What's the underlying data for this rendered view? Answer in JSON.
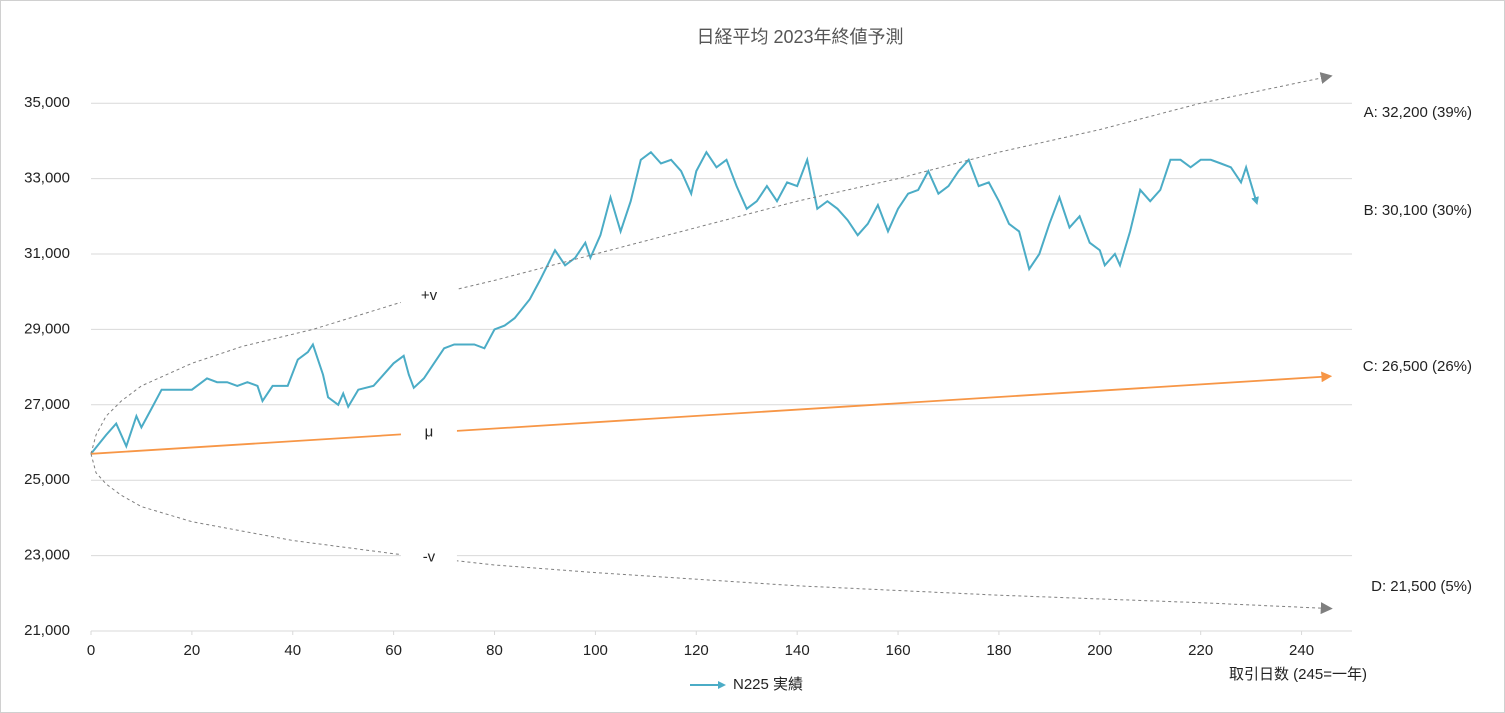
{
  "chart_data": {
    "type": "line",
    "title": "日経平均 2023年終値予測",
    "x_label": "取引日数 (245=一年)",
    "xlim": [
      0,
      250
    ],
    "ylim": [
      21000,
      36000
    ],
    "xticks": [
      0,
      20,
      40,
      60,
      80,
      100,
      120,
      140,
      160,
      180,
      200,
      220,
      240
    ],
    "yticks": [
      {
        "value": 21000,
        "label": "21,000"
      },
      {
        "value": 23000,
        "label": "23,000"
      },
      {
        "value": 25000,
        "label": "25,000"
      },
      {
        "value": 27000,
        "label": "27,000"
      },
      {
        "value": 29000,
        "label": "29,000"
      },
      {
        "value": 31000,
        "label": "31,000"
      },
      {
        "value": 33000,
        "label": "33,000"
      },
      {
        "value": 35000,
        "label": "35,000"
      }
    ],
    "grid": true,
    "legend": "bottom",
    "series": [
      {
        "name": "N225 実績",
        "color": "#4bacc6",
        "dashed": false,
        "legend": true,
        "x": [
          0,
          3,
          5,
          7,
          9,
          10,
          12,
          14,
          17,
          20,
          23,
          25,
          27,
          29,
          31,
          33,
          34,
          36,
          39,
          41,
          43,
          44,
          46,
          47,
          49,
          50,
          51,
          53,
          56,
          58,
          60,
          62,
          63,
          64,
          66,
          68,
          70,
          72,
          74,
          76,
          78,
          80,
          82,
          84,
          87,
          89,
          92,
          94,
          96,
          98,
          99,
          101,
          103,
          105,
          107,
          109,
          111,
          113,
          115,
          117,
          119,
          120,
          122,
          124,
          126,
          128,
          130,
          132,
          134,
          136,
          138,
          140,
          142,
          144,
          146,
          148,
          150,
          152,
          154,
          156,
          158,
          160,
          162,
          164,
          166,
          168,
          170,
          172,
          174,
          176,
          178,
          180,
          182,
          184,
          186,
          188,
          190,
          192,
          194,
          196,
          198,
          200,
          201,
          203,
          204,
          206,
          208,
          210,
          212,
          214,
          216,
          218,
          220,
          222,
          224,
          226,
          228,
          229,
          231
        ],
        "values": [
          25700,
          26200,
          26500,
          25900,
          26700,
          26400,
          26900,
          27400,
          27400,
          27400,
          27700,
          27600,
          27600,
          27500,
          27600,
          27500,
          27100,
          27500,
          27500,
          28200,
          28400,
          28600,
          27800,
          27200,
          27000,
          27300,
          26950,
          27400,
          27500,
          27800,
          28100,
          28300,
          27800,
          27450,
          27700,
          28100,
          28500,
          28600,
          28600,
          28600,
          28500,
          29000,
          29100,
          29300,
          29800,
          30300,
          31100,
          30700,
          30900,
          31300,
          30900,
          31500,
          32500,
          31600,
          32400,
          33500,
          33700,
          33400,
          33500,
          33200,
          32600,
          33200,
          33700,
          33300,
          33500,
          32800,
          32200,
          32400,
          32800,
          32400,
          32900,
          32800,
          33500,
          32200,
          32400,
          32200,
          31900,
          31500,
          31800,
          32300,
          31600,
          32200,
          32600,
          32700,
          33200,
          32600,
          32800,
          33200,
          33500,
          32800,
          32900,
          32400,
          31800,
          31600,
          30600,
          31000,
          31800,
          32500,
          31700,
          32000,
          31300,
          31100,
          30700,
          31000,
          30700,
          31600,
          32700,
          32400,
          32700,
          33500,
          33500,
          33300,
          33500,
          33500,
          33400,
          33300,
          32900,
          33300,
          32400
        ]
      },
      {
        "name": "+v",
        "color": "#7f7f7f",
        "dashed": true,
        "legend": false,
        "x": [
          0,
          1,
          3,
          6,
          10,
          20,
          30,
          44,
          61,
          80,
          100,
          120,
          140,
          160,
          180,
          200,
          220,
          245
        ],
        "values": [
          25700,
          26200,
          26700,
          27100,
          27500,
          28100,
          28550,
          29000,
          29700,
          30300,
          31000,
          31700,
          32400,
          33000,
          33700,
          34300,
          35000,
          35700
        ]
      },
      {
        "name": "μ",
        "color": "#f79646",
        "dashed": false,
        "legend": false,
        "x": [
          0,
          245
        ],
        "values": [
          25700,
          27750
        ]
      },
      {
        "name": "-v",
        "color": "#7f7f7f",
        "dashed": true,
        "legend": false,
        "x": [
          0,
          1,
          3,
          6,
          10,
          20,
          40,
          60,
          80,
          100,
          140,
          180,
          220,
          245
        ],
        "values": [
          25700,
          25200,
          24900,
          24600,
          24300,
          23900,
          23400,
          23050,
          22750,
          22550,
          22200,
          21950,
          21750,
          21600
        ]
      }
    ],
    "annotations": [
      "A: 32,200 (39%)",
      "B: 30,100 (30%)",
      "C: 26,500 (26%)",
      "D: 21,500 (5%)"
    ]
  }
}
